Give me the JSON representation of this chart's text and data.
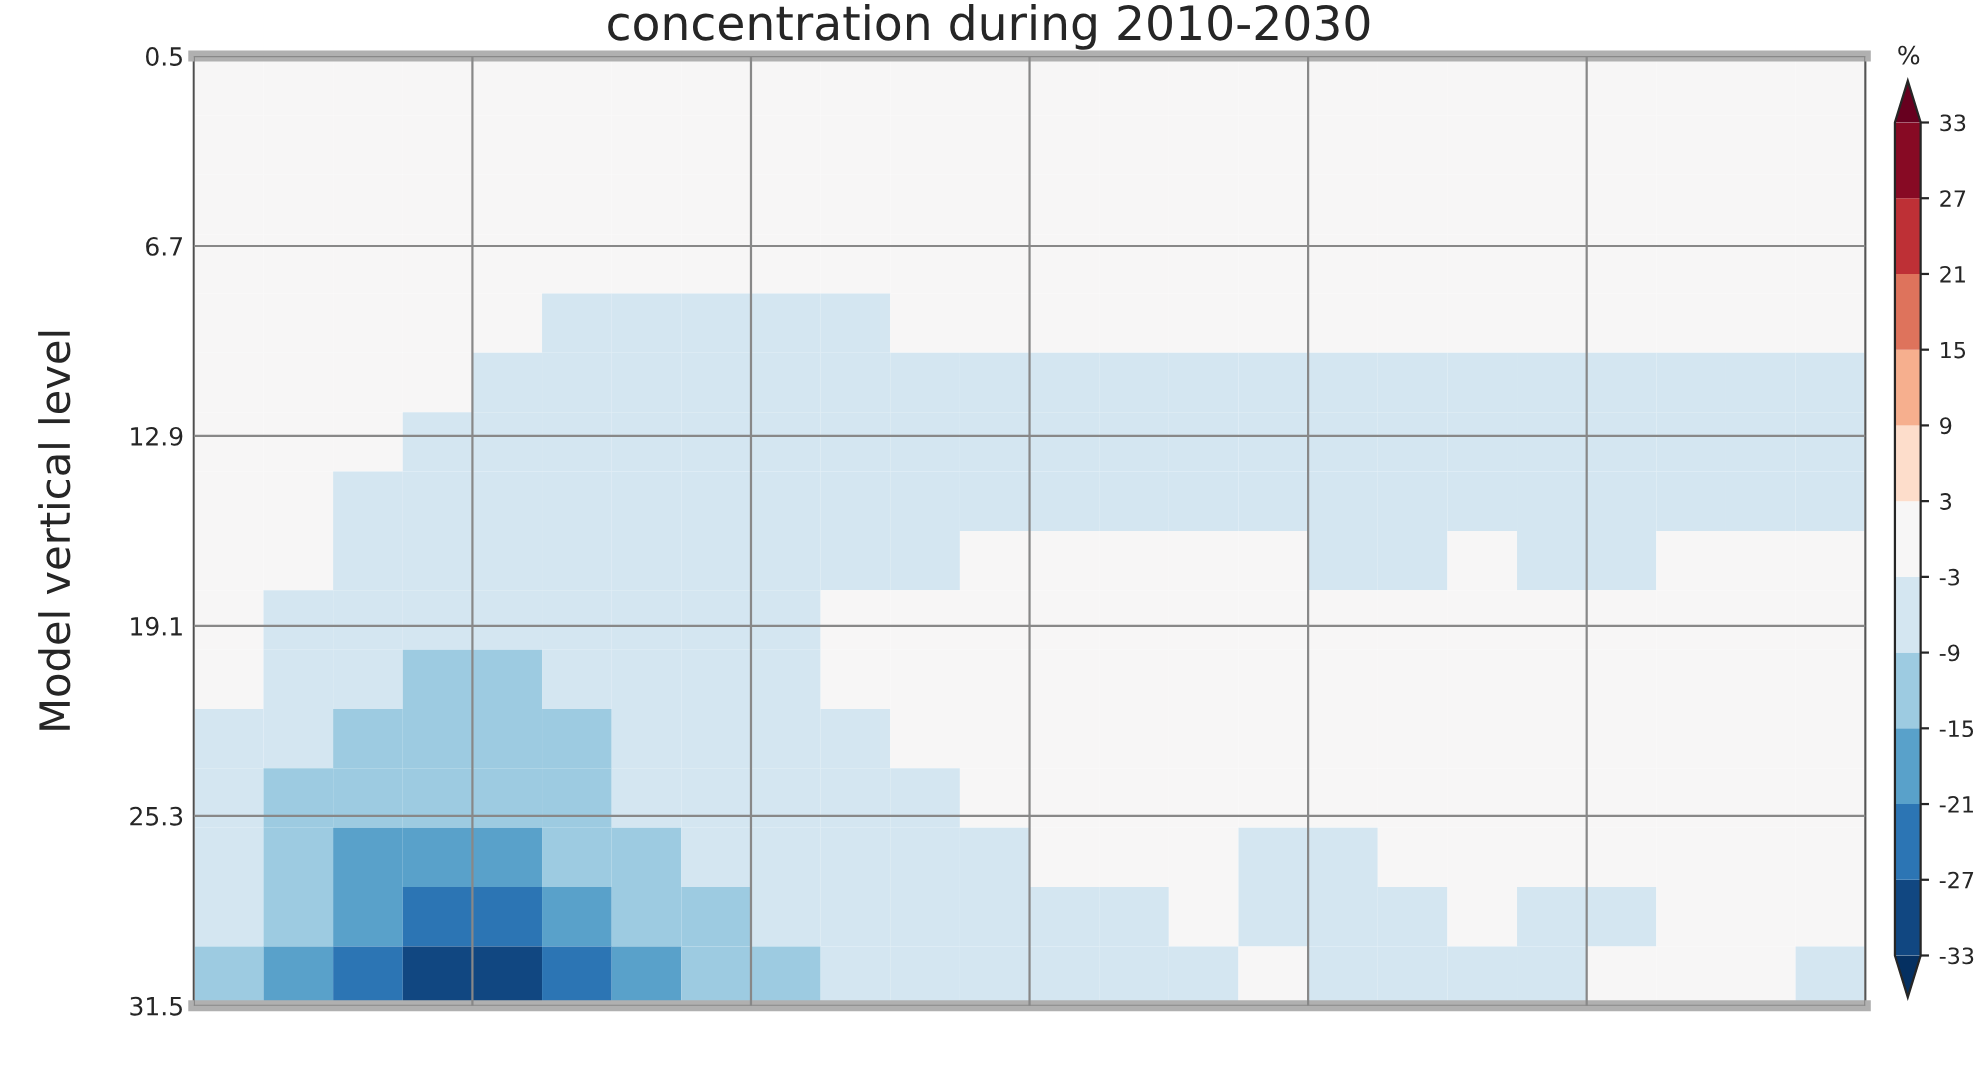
{
  "chart_data": {
    "type": "heatmap",
    "title": "concentration during 2010-2030",
    "ylabel": "Model vertical level",
    "clabel": "%",
    "categories": [
      null,
      null,
      null,
      null,
      null,
      null,
      null,
      null,
      null,
      null,
      null,
      null,
      null,
      null,
      null,
      null,
      null,
      null,
      null,
      null,
      null,
      null,
      null,
      null
    ],
    "ylim": [
      31.5,
      0.5
    ],
    "yticks": [
      0.5,
      6.7,
      12.9,
      19.1,
      25.3,
      31.5
    ],
    "tick_labels": "y",
    "grid": true,
    "clim": [
      -33,
      33
    ],
    "cticks": [
      -33,
      -27,
      -21,
      -15,
      -9,
      -3,
      3,
      9,
      15,
      21,
      27,
      33
    ],
    "cells": [
      [
        0,
        0,
        0,
        0,
        0,
        0,
        0,
        0,
        0,
        0,
        0,
        0,
        0,
        0,
        0,
        0,
        0,
        0,
        0,
        0,
        0,
        0,
        0,
        0
      ],
      [
        0,
        0,
        0,
        0,
        0,
        0,
        0,
        0,
        0,
        0,
        0,
        0,
        0,
        0,
        0,
        0,
        0,
        0,
        0,
        0,
        0,
        0,
        0,
        0
      ],
      [
        0,
        0,
        0,
        0,
        0,
        0,
        0,
        0,
        0,
        0,
        0,
        0,
        0,
        0,
        0,
        0,
        0,
        0,
        0,
        0,
        0,
        0,
        0,
        0
      ],
      [
        0,
        0,
        0,
        0,
        0,
        0,
        0,
        0,
        0,
        0,
        0,
        0,
        0,
        0,
        0,
        0,
        0,
        0,
        0,
        0,
        0,
        0,
        0,
        0
      ],
      [
        0,
        0,
        0,
        0,
        0,
        -6,
        -6,
        -6,
        -6,
        -6,
        0,
        0,
        0,
        0,
        0,
        0,
        0,
        0,
        0,
        0,
        0,
        0,
        0,
        0
      ],
      [
        0,
        0,
        0,
        0,
        -6,
        -6,
        -6,
        -6,
        -6,
        -6,
        -6,
        -6,
        -6,
        -6,
        -6,
        -6,
        -6,
        -6,
        -6,
        -6,
        -6,
        -6,
        -6,
        -6
      ],
      [
        0,
        0,
        0,
        -6,
        -6,
        -6,
        -6,
        -6,
        -6,
        -6,
        -6,
        -6,
        -6,
        -6,
        -6,
        -6,
        -6,
        -6,
        -6,
        -6,
        -6,
        -6,
        -6,
        -6
      ],
      [
        0,
        0,
        -6,
        -6,
        -6,
        -6,
        -6,
        -6,
        -6,
        -6,
        -6,
        -6,
        -6,
        -6,
        -6,
        -6,
        -6,
        -6,
        -6,
        -6,
        -6,
        -6,
        -6,
        -6
      ],
      [
        0,
        0,
        -6,
        -6,
        -6,
        -6,
        -6,
        -6,
        -6,
        -6,
        -6,
        0,
        0,
        0,
        0,
        0,
        -6,
        -6,
        0,
        -6,
        -6,
        0,
        0,
        0
      ],
      [
        0,
        -6,
        -6,
        -6,
        -6,
        -6,
        -6,
        -6,
        -6,
        0,
        0,
        0,
        0,
        0,
        0,
        0,
        0,
        0,
        0,
        0,
        0,
        0,
        0,
        0
      ],
      [
        0,
        -6,
        -6,
        -12,
        -12,
        -6,
        -6,
        -6,
        -6,
        0,
        0,
        0,
        0,
        0,
        0,
        0,
        0,
        0,
        0,
        0,
        0,
        0,
        0,
        0
      ],
      [
        -6,
        -6,
        -12,
        -12,
        -12,
        -12,
        -6,
        -6,
        -6,
        -6,
        0,
        0,
        0,
        0,
        0,
        0,
        0,
        0,
        0,
        0,
        0,
        0,
        0,
        0
      ],
      [
        -6,
        -12,
        -12,
        -12,
        -12,
        -12,
        -6,
        -6,
        -6,
        -6,
        -6,
        0,
        0,
        0,
        0,
        0,
        0,
        0,
        0,
        0,
        0,
        0,
        0,
        0
      ],
      [
        -6,
        -12,
        -18,
        -18,
        -18,
        -12,
        -12,
        -6,
        -6,
        -6,
        -6,
        -6,
        0,
        0,
        0,
        -6,
        -6,
        0,
        0,
        0,
        0,
        0,
        0,
        0
      ],
      [
        -6,
        -12,
        -18,
        -24,
        -24,
        -18,
        -12,
        -12,
        -6,
        -6,
        -6,
        -6,
        -6,
        -6,
        0,
        -6,
        -6,
        -6,
        0,
        -6,
        -6,
        0,
        0,
        0
      ],
      [
        -12,
        -18,
        -24,
        -30,
        -30,
        -24,
        -18,
        -12,
        -12,
        -6,
        -6,
        -6,
        -6,
        -6,
        -6,
        0,
        -6,
        -6,
        -6,
        -6,
        0,
        0,
        0,
        -6
      ]
    ]
  }
}
